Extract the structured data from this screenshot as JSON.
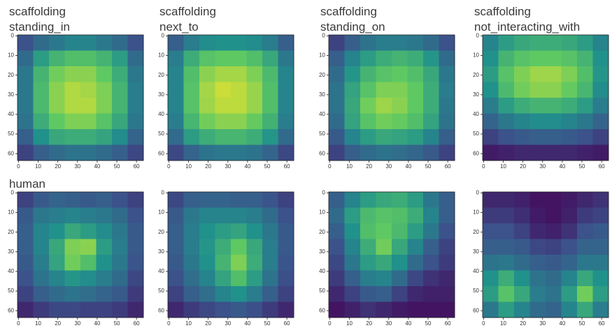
{
  "chart_data": [
    {
      "type": "heatmap",
      "title": "scaffolding",
      "subtitle": "standing_in",
      "colormap": "viridis",
      "xlim": [
        -0.5,
        63.5
      ],
      "ylim": [
        63.5,
        -0.5
      ],
      "xticks": [
        0,
        10,
        20,
        30,
        40,
        50,
        60
      ],
      "yticks": [
        0,
        10,
        20,
        30,
        40,
        50,
        60
      ],
      "values": [
        [
          0.25,
          0.35,
          0.4,
          0.45,
          0.45,
          0.4,
          0.35,
          0.25
        ],
        [
          0.35,
          0.55,
          0.65,
          0.7,
          0.7,
          0.65,
          0.55,
          0.35
        ],
        [
          0.4,
          0.65,
          0.78,
          0.82,
          0.82,
          0.75,
          0.62,
          0.4
        ],
        [
          0.4,
          0.68,
          0.82,
          0.88,
          0.86,
          0.8,
          0.65,
          0.42
        ],
        [
          0.4,
          0.68,
          0.82,
          0.88,
          0.88,
          0.8,
          0.65,
          0.42
        ],
        [
          0.38,
          0.62,
          0.75,
          0.8,
          0.8,
          0.72,
          0.6,
          0.4
        ],
        [
          0.3,
          0.5,
          0.6,
          0.62,
          0.62,
          0.58,
          0.48,
          0.32
        ],
        [
          0.2,
          0.3,
          0.35,
          0.38,
          0.38,
          0.35,
          0.3,
          0.22
        ]
      ]
    },
    {
      "type": "heatmap",
      "title": "scaffolding",
      "subtitle": "next_to",
      "colormap": "viridis",
      "xlim": [
        -0.5,
        63.5
      ],
      "ylim": [
        63.5,
        -0.5
      ],
      "xticks": [
        0,
        10,
        20,
        30,
        40,
        50,
        60
      ],
      "yticks": [
        0,
        10,
        20,
        30,
        40,
        50,
        60
      ],
      "values": [
        [
          0.3,
          0.42,
          0.48,
          0.5,
          0.5,
          0.48,
          0.42,
          0.3
        ],
        [
          0.42,
          0.62,
          0.72,
          0.75,
          0.75,
          0.7,
          0.6,
          0.4
        ],
        [
          0.45,
          0.7,
          0.82,
          0.86,
          0.86,
          0.8,
          0.68,
          0.45
        ],
        [
          0.45,
          0.72,
          0.86,
          0.92,
          0.9,
          0.84,
          0.7,
          0.45
        ],
        [
          0.45,
          0.72,
          0.85,
          0.9,
          0.9,
          0.84,
          0.7,
          0.45
        ],
        [
          0.42,
          0.66,
          0.78,
          0.82,
          0.82,
          0.76,
          0.64,
          0.42
        ],
        [
          0.35,
          0.55,
          0.62,
          0.66,
          0.66,
          0.62,
          0.52,
          0.35
        ],
        [
          0.22,
          0.32,
          0.38,
          0.4,
          0.4,
          0.38,
          0.32,
          0.22
        ]
      ]
    },
    {
      "type": "heatmap",
      "title": "scaffolding",
      "subtitle": "standing_on",
      "colormap": "viridis",
      "xlim": [
        -0.5,
        63.5
      ],
      "ylim": [
        63.5,
        -0.5
      ],
      "xticks": [
        0,
        10,
        20,
        30,
        40,
        50,
        60
      ],
      "yticks": [
        0,
        10,
        20,
        30,
        40,
        50,
        60
      ],
      "values": [
        [
          0.2,
          0.3,
          0.38,
          0.42,
          0.42,
          0.4,
          0.35,
          0.25
        ],
        [
          0.3,
          0.45,
          0.55,
          0.62,
          0.65,
          0.62,
          0.52,
          0.35
        ],
        [
          0.35,
          0.52,
          0.65,
          0.72,
          0.75,
          0.7,
          0.6,
          0.4
        ],
        [
          0.38,
          0.58,
          0.72,
          0.8,
          0.8,
          0.75,
          0.62,
          0.42
        ],
        [
          0.38,
          0.6,
          0.78,
          0.85,
          0.82,
          0.75,
          0.62,
          0.4
        ],
        [
          0.35,
          0.58,
          0.72,
          0.78,
          0.76,
          0.7,
          0.58,
          0.38
        ],
        [
          0.28,
          0.45,
          0.55,
          0.6,
          0.58,
          0.55,
          0.45,
          0.3
        ],
        [
          0.2,
          0.3,
          0.35,
          0.38,
          0.36,
          0.33,
          0.28,
          0.2
        ]
      ]
    },
    {
      "type": "heatmap",
      "title": "scaffolding",
      "subtitle": "not_interacting_with",
      "colormap": "viridis",
      "xlim": [
        -0.5,
        63.5
      ],
      "ylim": [
        63.5,
        -0.5
      ],
      "xticks": [
        0,
        10,
        20,
        30,
        40,
        50,
        60
      ],
      "yticks": [
        0,
        10,
        20,
        30,
        40,
        50,
        60
      ],
      "values": [
        [
          0.45,
          0.55,
          0.6,
          0.62,
          0.62,
          0.6,
          0.55,
          0.45
        ],
        [
          0.5,
          0.65,
          0.72,
          0.75,
          0.75,
          0.72,
          0.65,
          0.5
        ],
        [
          0.55,
          0.72,
          0.8,
          0.85,
          0.85,
          0.8,
          0.7,
          0.52
        ],
        [
          0.5,
          0.68,
          0.78,
          0.82,
          0.82,
          0.76,
          0.66,
          0.48
        ],
        [
          0.42,
          0.55,
          0.62,
          0.65,
          0.65,
          0.62,
          0.55,
          0.42
        ],
        [
          0.32,
          0.4,
          0.45,
          0.48,
          0.48,
          0.45,
          0.4,
          0.32
        ],
        [
          0.2,
          0.25,
          0.28,
          0.3,
          0.3,
          0.28,
          0.25,
          0.2
        ],
        [
          0.08,
          0.1,
          0.12,
          0.12,
          0.12,
          0.12,
          0.1,
          0.08
        ]
      ]
    },
    {
      "type": "heatmap",
      "title": "human",
      "colormap": "viridis",
      "xlim": [
        -0.5,
        63.5
      ],
      "ylim": [
        63.5,
        -0.5
      ],
      "xticks": [
        0,
        10,
        20,
        30,
        40,
        50,
        60
      ],
      "yticks": [
        0,
        10,
        20,
        30,
        40,
        50,
        60
      ],
      "values": [
        [
          0.2,
          0.28,
          0.32,
          0.3,
          0.28,
          0.3,
          0.25,
          0.2
        ],
        [
          0.28,
          0.4,
          0.42,
          0.45,
          0.42,
          0.4,
          0.35,
          0.25
        ],
        [
          0.3,
          0.45,
          0.5,
          0.6,
          0.55,
          0.48,
          0.4,
          0.28
        ],
        [
          0.3,
          0.45,
          0.6,
          0.8,
          0.82,
          0.55,
          0.42,
          0.28
        ],
        [
          0.28,
          0.42,
          0.58,
          0.78,
          0.7,
          0.5,
          0.4,
          0.26
        ],
        [
          0.25,
          0.38,
          0.45,
          0.52,
          0.48,
          0.42,
          0.35,
          0.22
        ],
        [
          0.2,
          0.3,
          0.35,
          0.38,
          0.36,
          0.32,
          0.28,
          0.18
        ],
        [
          0.12,
          0.18,
          0.22,
          0.22,
          0.2,
          0.2,
          0.18,
          0.12
        ]
      ]
    },
    {
      "type": "heatmap",
      "colormap": "viridis",
      "xlim": [
        -0.5,
        63.5
      ],
      "ylim": [
        63.5,
        -0.5
      ],
      "xticks": [
        0,
        10,
        20,
        30,
        40,
        50,
        60
      ],
      "yticks": [
        0,
        10,
        20,
        30,
        40,
        50,
        60
      ],
      "values": [
        [
          0.22,
          0.3,
          0.32,
          0.32,
          0.3,
          0.3,
          0.26,
          0.2
        ],
        [
          0.28,
          0.4,
          0.45,
          0.45,
          0.45,
          0.42,
          0.35,
          0.25
        ],
        [
          0.3,
          0.42,
          0.5,
          0.55,
          0.58,
          0.5,
          0.4,
          0.28
        ],
        [
          0.3,
          0.42,
          0.52,
          0.62,
          0.75,
          0.6,
          0.42,
          0.28
        ],
        [
          0.28,
          0.4,
          0.5,
          0.65,
          0.8,
          0.62,
          0.42,
          0.26
        ],
        [
          0.25,
          0.36,
          0.45,
          0.58,
          0.7,
          0.55,
          0.38,
          0.24
        ],
        [
          0.2,
          0.3,
          0.36,
          0.45,
          0.5,
          0.42,
          0.3,
          0.2
        ],
        [
          0.12,
          0.18,
          0.22,
          0.25,
          0.28,
          0.24,
          0.18,
          0.12
        ]
      ]
    },
    {
      "type": "heatmap",
      "colormap": "viridis",
      "xlim": [
        -0.5,
        63.5
      ],
      "ylim": [
        63.5,
        -0.5
      ],
      "xticks": [
        0,
        10,
        20,
        30,
        40,
        50,
        60
      ],
      "yticks": [
        0,
        10,
        20,
        30,
        40,
        50,
        60
      ],
      "values": [
        [
          0.3,
          0.45,
          0.55,
          0.6,
          0.62,
          0.55,
          0.4,
          0.3
        ],
        [
          0.35,
          0.55,
          0.68,
          0.72,
          0.7,
          0.62,
          0.45,
          0.3
        ],
        [
          0.3,
          0.5,
          0.7,
          0.75,
          0.68,
          0.55,
          0.4,
          0.25
        ],
        [
          0.25,
          0.45,
          0.62,
          0.78,
          0.6,
          0.45,
          0.3,
          0.2
        ],
        [
          0.22,
          0.4,
          0.55,
          0.6,
          0.5,
          0.35,
          0.25,
          0.18
        ],
        [
          0.18,
          0.3,
          0.42,
          0.45,
          0.35,
          0.22,
          0.15,
          0.12
        ],
        [
          0.12,
          0.2,
          0.28,
          0.3,
          0.2,
          0.12,
          0.1,
          0.1
        ],
        [
          0.06,
          0.1,
          0.15,
          0.12,
          0.08,
          0.06,
          0.06,
          0.06
        ]
      ]
    },
    {
      "type": "heatmap",
      "colormap": "viridis",
      "xlim": [
        -0.5,
        63.5
      ],
      "ylim": [
        63.5,
        -0.5
      ],
      "xticks": [
        0,
        10,
        20,
        30,
        40,
        50,
        60
      ],
      "yticks": [
        0,
        10,
        20,
        30,
        40,
        50,
        60
      ],
      "values": [
        [
          0.12,
          0.12,
          0.1,
          0.06,
          0.06,
          0.08,
          0.12,
          0.15
        ],
        [
          0.18,
          0.18,
          0.14,
          0.08,
          0.06,
          0.1,
          0.18,
          0.2
        ],
        [
          0.25,
          0.25,
          0.2,
          0.12,
          0.1,
          0.15,
          0.25,
          0.28
        ],
        [
          0.3,
          0.3,
          0.28,
          0.22,
          0.2,
          0.25,
          0.32,
          0.32
        ],
        [
          0.38,
          0.4,
          0.35,
          0.3,
          0.28,
          0.32,
          0.4,
          0.4
        ],
        [
          0.5,
          0.62,
          0.5,
          0.38,
          0.35,
          0.45,
          0.6,
          0.5
        ],
        [
          0.55,
          0.72,
          0.6,
          0.42,
          0.38,
          0.55,
          0.78,
          0.55
        ],
        [
          0.4,
          0.55,
          0.45,
          0.35,
          0.32,
          0.45,
          0.6,
          0.42
        ]
      ]
    }
  ]
}
